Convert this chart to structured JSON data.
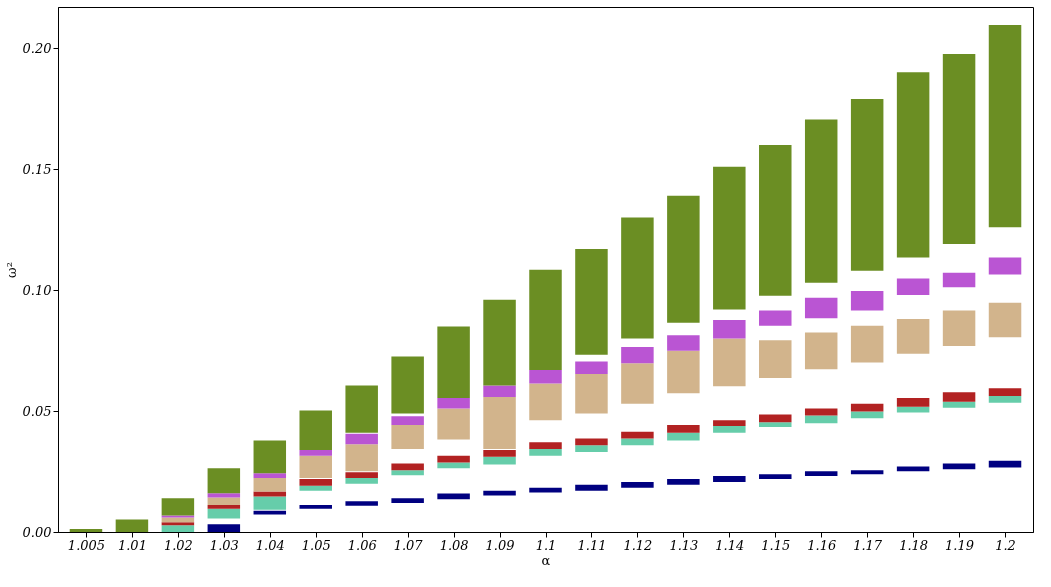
{
  "chart_data": {
    "type": "bar",
    "xlabel": "α",
    "ylabel": "ω²",
    "categories": [
      "1.005",
      "1.01",
      "1.02",
      "1.03",
      "1.04",
      "1.05",
      "1.06",
      "1.07",
      "1.08",
      "1.09",
      "1.1",
      "1.11",
      "1.12",
      "1.13",
      "1.14",
      "1.15",
      "1.16",
      "1.17",
      "1.18",
      "1.19",
      "1.2"
    ],
    "series": [
      {
        "color": "#000080",
        "base": [
          null,
          null,
          null,
          0,
          0.0072,
          0.0096,
          0.0108,
          0.012,
          0.0135,
          0.0151,
          0.0163,
          0.0171,
          0.0183,
          0.0195,
          0.0207,
          0.0219,
          0.0231,
          0.0239,
          0.0251,
          0.0259,
          0.0267
        ],
        "values": [
          null,
          null,
          null,
          0.0032,
          0.0016,
          0.0016,
          0.0019,
          0.0019,
          0.0024,
          0.002,
          0.002,
          0.0024,
          0.0024,
          0.0024,
          0.0024,
          0.002,
          0.002,
          0.0016,
          0.002,
          0.0024,
          0.0028
        ]
      },
      {
        "color": "#66cdaa",
        "base": [
          null,
          null,
          0,
          0.0056,
          0.0092,
          0.0171,
          0.0199,
          0.0235,
          0.0263,
          0.0279,
          0.0315,
          0.0331,
          0.0359,
          0.0378,
          0.041,
          0.0434,
          0.045,
          0.047,
          0.0494,
          0.0514,
          0.0534
        ],
        "values": [
          null,
          null,
          0.0028,
          0.004,
          0.0055,
          0.002,
          0.0024,
          0.002,
          0.0024,
          0.0032,
          0.0028,
          0.0028,
          0.0027,
          0.0032,
          0.0028,
          0.002,
          0.0032,
          0.0028,
          0.0024,
          0.0024,
          0.0028
        ]
      },
      {
        "color": "#b22222",
        "base": [
          null,
          null,
          0.0028,
          0.0096,
          0.0147,
          0.0191,
          0.0223,
          0.0255,
          0.0287,
          0.0311,
          0.0343,
          0.0359,
          0.0386,
          0.041,
          0.0438,
          0.0454,
          0.0482,
          0.0498,
          0.0518,
          0.0538,
          0.0562
        ],
        "values": [
          null,
          null,
          0.0012,
          0.0016,
          0.002,
          0.0028,
          0.0024,
          0.0028,
          0.0028,
          0.0028,
          0.0028,
          0.0027,
          0.0028,
          0.0032,
          0.0024,
          0.0032,
          0.0028,
          0.0032,
          0.0036,
          0.004,
          0.0032
        ]
      },
      {
        "color": "#d2b48c",
        "base": [
          null,
          null,
          0.004,
          0.0112,
          0.0167,
          0.0223,
          0.0251,
          0.0343,
          0.0382,
          0.0343,
          0.0462,
          0.049,
          0.053,
          0.0574,
          0.0602,
          0.0637,
          0.0673,
          0.0701,
          0.0737,
          0.0769,
          0.0805
        ],
        "values": [
          null,
          null,
          0.002,
          0.0031,
          0.0056,
          0.0092,
          0.0112,
          0.0099,
          0.0128,
          0.0215,
          0.0152,
          0.0163,
          0.0167,
          0.0175,
          0.0198,
          0.0156,
          0.0152,
          0.0152,
          0.0143,
          0.0147,
          0.0143
        ]
      },
      {
        "color": "#ba55d3",
        "base": [
          null,
          null,
          0.006,
          0.0143,
          0.0223,
          0.0315,
          0.0363,
          0.0442,
          0.051,
          0.0558,
          0.0614,
          0.0653,
          0.0697,
          0.0749,
          0.08,
          0.0853,
          0.0884,
          0.0916,
          0.098,
          0.1012,
          0.1064
        ],
        "values": [
          null,
          null,
          0.0008,
          0.0017,
          0.002,
          0.0024,
          0.0043,
          0.0036,
          0.0044,
          0.0048,
          0.0056,
          0.0052,
          0.0068,
          0.0064,
          0.0076,
          0.0063,
          0.0084,
          0.008,
          0.0068,
          0.006,
          0.0071
        ]
      },
      {
        "color": "#6b8e23",
        "base": [
          0,
          0,
          0.0068,
          0.016,
          0.0243,
          0.0339,
          0.041,
          0.049,
          0.0554,
          0.0606,
          0.067,
          0.0733,
          0.08,
          0.0865,
          0.092,
          0.0976,
          0.103,
          0.108,
          0.1135,
          0.119,
          0.126
        ],
        "values": [
          0.0012,
          0.0052,
          0.0072,
          0.0103,
          0.0135,
          0.0163,
          0.0196,
          0.0235,
          0.0295,
          0.0354,
          0.0414,
          0.0437,
          0.05,
          0.0525,
          0.059,
          0.0624,
          0.0675,
          0.071,
          0.0765,
          0.0786,
          0.0836
        ]
      }
    ],
    "ylim": [
      0,
      0.217
    ],
    "yticks": [
      {
        "value": 0,
        "label": "0.00"
      },
      0.05,
      {
        "value": 0.1,
        "label": "0.10"
      },
      0.15,
      {
        "value": 0.2,
        "label": "0.20"
      }
    ],
    "grid": false
  }
}
